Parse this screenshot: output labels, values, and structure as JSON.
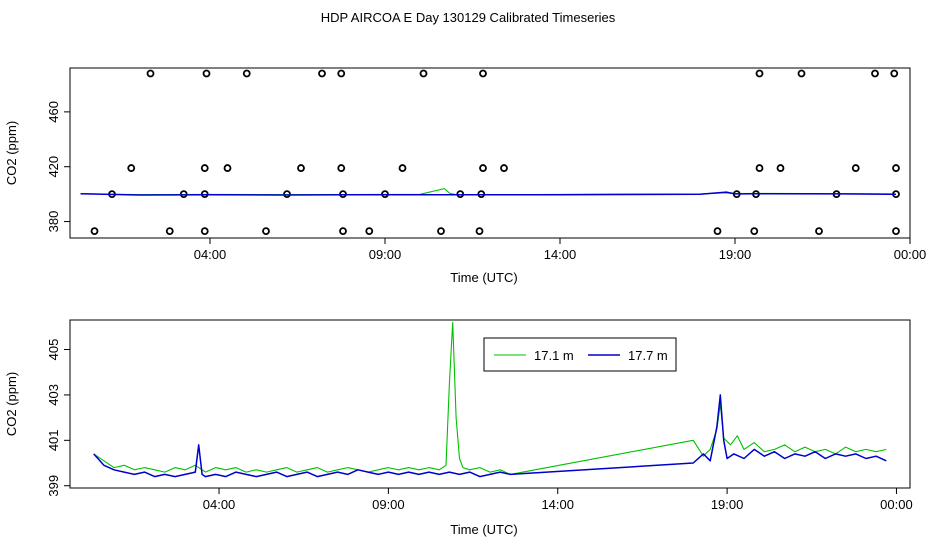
{
  "title": "HDP AIRCOA E  Day 130129  Calibrated Timeseries",
  "colors": {
    "series_17_1": "#00c000",
    "series_17_7": "#0000cc",
    "points": "#000000",
    "axis": "#000000"
  },
  "chart_data": [
    {
      "type": "line",
      "xlabel": "Time (UTC)",
      "ylabel": "CO2 (ppm)",
      "xlim": [
        0.0,
        24.0
      ],
      "ylim": [
        368,
        492
      ],
      "x_ticks": [
        "04:00",
        "09:00",
        "14:00",
        "19:00",
        "00:00"
      ],
      "x_tick_values": [
        4,
        9,
        14,
        19,
        24
      ],
      "y_ticks": [
        "380",
        "420",
        "460"
      ],
      "y_tick_values": [
        380,
        420,
        460
      ],
      "markers": [
        {
          "x": 2.3,
          "y": 488
        },
        {
          "x": 3.9,
          "y": 488
        },
        {
          "x": 5.05,
          "y": 488
        },
        {
          "x": 7.2,
          "y": 488
        },
        {
          "x": 7.75,
          "y": 488
        },
        {
          "x": 10.1,
          "y": 488
        },
        {
          "x": 11.8,
          "y": 488
        },
        {
          "x": 19.7,
          "y": 488
        },
        {
          "x": 20.9,
          "y": 488
        },
        {
          "x": 23.0,
          "y": 488
        },
        {
          "x": 23.55,
          "y": 488
        },
        {
          "x": 1.75,
          "y": 419
        },
        {
          "x": 3.85,
          "y": 419
        },
        {
          "x": 4.5,
          "y": 419
        },
        {
          "x": 6.6,
          "y": 419
        },
        {
          "x": 7.75,
          "y": 419
        },
        {
          "x": 9.5,
          "y": 419
        },
        {
          "x": 11.8,
          "y": 419
        },
        {
          "x": 12.4,
          "y": 419
        },
        {
          "x": 19.7,
          "y": 419
        },
        {
          "x": 20.3,
          "y": 419
        },
        {
          "x": 22.45,
          "y": 419
        },
        {
          "x": 23.6,
          "y": 419
        },
        {
          "x": 1.2,
          "y": 400
        },
        {
          "x": 3.25,
          "y": 400
        },
        {
          "x": 3.85,
          "y": 400
        },
        {
          "x": 6.2,
          "y": 400
        },
        {
          "x": 7.8,
          "y": 400
        },
        {
          "x": 9.0,
          "y": 400
        },
        {
          "x": 11.15,
          "y": 400
        },
        {
          "x": 11.75,
          "y": 400
        },
        {
          "x": 19.05,
          "y": 400
        },
        {
          "x": 19.6,
          "y": 400
        },
        {
          "x": 21.9,
          "y": 400
        },
        {
          "x": 23.6,
          "y": 400
        },
        {
          "x": 0.7,
          "y": 373
        },
        {
          "x": 2.85,
          "y": 373
        },
        {
          "x": 3.85,
          "y": 373
        },
        {
          "x": 5.6,
          "y": 373
        },
        {
          "x": 7.8,
          "y": 373
        },
        {
          "x": 8.55,
          "y": 373
        },
        {
          "x": 10.6,
          "y": 373
        },
        {
          "x": 11.7,
          "y": 373
        },
        {
          "x": 18.5,
          "y": 373
        },
        {
          "x": 19.55,
          "y": 373
        },
        {
          "x": 21.4,
          "y": 373
        },
        {
          "x": 23.6,
          "y": 373
        }
      ],
      "series": [
        {
          "x": [
            0.3,
            2,
            4,
            6,
            8,
            10,
            10.7,
            10.85,
            11,
            12,
            14,
            16,
            18,
            18.7,
            19,
            20,
            22,
            23.6
          ],
          "values": [
            400.3,
            399.6,
            399.8,
            399.6,
            399.7,
            399.9,
            404.0,
            400.5,
            399.8,
            399.6,
            399.8,
            400.0,
            400.1,
            401.0,
            400.4,
            400.5,
            400.3,
            400.1
          ]
        },
        {
          "x": [
            0.3,
            2,
            4,
            6,
            8,
            10,
            12,
            14,
            16,
            18,
            18.75,
            19,
            20,
            22,
            23.6
          ],
          "values": [
            400.3,
            399.4,
            399.5,
            399.4,
            399.6,
            399.5,
            399.5,
            399.6,
            399.7,
            399.9,
            401.5,
            400.2,
            400.3,
            400.2,
            399.9
          ]
        }
      ]
    },
    {
      "type": "line",
      "xlabel": "Time (UTC)",
      "ylabel": "CO2 (ppm)",
      "xlim": [
        -0.4,
        24.4
      ],
      "ylim": [
        398.9,
        406.3
      ],
      "x_ticks": [
        "04:00",
        "09:00",
        "14:00",
        "19:00",
        "00:00"
      ],
      "x_tick_values": [
        4,
        9,
        14,
        19,
        24
      ],
      "y_ticks": [
        "399",
        "401",
        "403",
        "405"
      ],
      "y_tick_values": [
        399,
        401,
        403,
        405
      ],
      "legend_position": "top-right",
      "series": [
        {
          "name": "17.1 m",
          "x": [
            0.3,
            0.6,
            0.9,
            1.2,
            1.5,
            1.8,
            2.1,
            2.4,
            2.7,
            3.0,
            3.3,
            3.6,
            3.9,
            4.2,
            4.5,
            4.8,
            5.1,
            5.4,
            5.7,
            6.0,
            6.3,
            6.6,
            6.9,
            7.2,
            7.5,
            7.8,
            8.1,
            8.4,
            8.7,
            9.0,
            9.3,
            9.6,
            9.9,
            10.2,
            10.5,
            10.7,
            10.8,
            10.9,
            11.0,
            11.1,
            11.2,
            11.4,
            11.7,
            12.0,
            12.3,
            12.6,
            18.0,
            18.3,
            18.5,
            18.7,
            18.8,
            18.9,
            19.1,
            19.3,
            19.5,
            19.8,
            20.1,
            20.4,
            20.7,
            21.0,
            21.3,
            21.6,
            21.9,
            22.2,
            22.5,
            22.8,
            23.1,
            23.4,
            23.7
          ],
          "values": [
            400.4,
            400.1,
            399.8,
            399.9,
            399.7,
            399.8,
            399.7,
            399.6,
            399.8,
            399.7,
            399.9,
            399.6,
            399.8,
            399.7,
            399.8,
            399.6,
            399.7,
            399.6,
            399.7,
            399.8,
            399.6,
            399.7,
            399.8,
            399.6,
            399.7,
            399.8,
            399.7,
            399.6,
            399.7,
            399.8,
            399.7,
            399.8,
            399.7,
            399.8,
            399.7,
            399.9,
            403.5,
            406.2,
            402.0,
            400.2,
            399.8,
            399.7,
            399.8,
            399.6,
            399.7,
            399.5,
            401.0,
            400.3,
            400.6,
            401.5,
            402.6,
            401.1,
            400.8,
            401.2,
            400.6,
            400.9,
            400.5,
            400.6,
            400.8,
            400.5,
            400.7,
            400.5,
            400.6,
            400.4,
            400.7,
            400.5,
            400.6,
            400.5,
            400.6
          ]
        },
        {
          "name": "17.7 m",
          "x": [
            0.3,
            0.6,
            0.9,
            1.2,
            1.5,
            1.8,
            2.1,
            2.4,
            2.7,
            3.0,
            3.3,
            3.4,
            3.5,
            3.6,
            3.9,
            4.2,
            4.5,
            4.8,
            5.1,
            5.4,
            5.7,
            6.0,
            6.3,
            6.6,
            6.9,
            7.2,
            7.5,
            7.8,
            8.1,
            8.4,
            8.7,
            9.0,
            9.3,
            9.6,
            9.9,
            10.2,
            10.5,
            10.8,
            11.1,
            11.4,
            11.7,
            12.0,
            12.3,
            12.6,
            18.0,
            18.3,
            18.5,
            18.7,
            18.8,
            18.9,
            19.0,
            19.2,
            19.5,
            19.8,
            20.1,
            20.4,
            20.7,
            21.0,
            21.3,
            21.6,
            21.9,
            22.2,
            22.5,
            22.8,
            23.1,
            23.4,
            23.7
          ],
          "values": [
            400.4,
            399.9,
            399.7,
            399.6,
            399.5,
            399.6,
            399.4,
            399.5,
            399.4,
            399.5,
            399.6,
            400.8,
            399.5,
            399.4,
            399.5,
            399.4,
            399.6,
            399.5,
            399.4,
            399.5,
            399.6,
            399.4,
            399.5,
            399.6,
            399.4,
            399.5,
            399.6,
            399.5,
            399.7,
            399.6,
            399.5,
            399.6,
            399.5,
            399.6,
            399.5,
            399.6,
            399.5,
            399.6,
            399.5,
            399.6,
            399.4,
            399.5,
            399.6,
            399.5,
            400.0,
            400.4,
            400.1,
            401.6,
            403.0,
            401.0,
            400.2,
            400.4,
            400.2,
            400.6,
            400.3,
            400.5,
            400.2,
            400.4,
            400.3,
            400.5,
            400.2,
            400.4,
            400.3,
            400.4,
            400.2,
            400.3,
            400.1
          ]
        }
      ]
    }
  ]
}
